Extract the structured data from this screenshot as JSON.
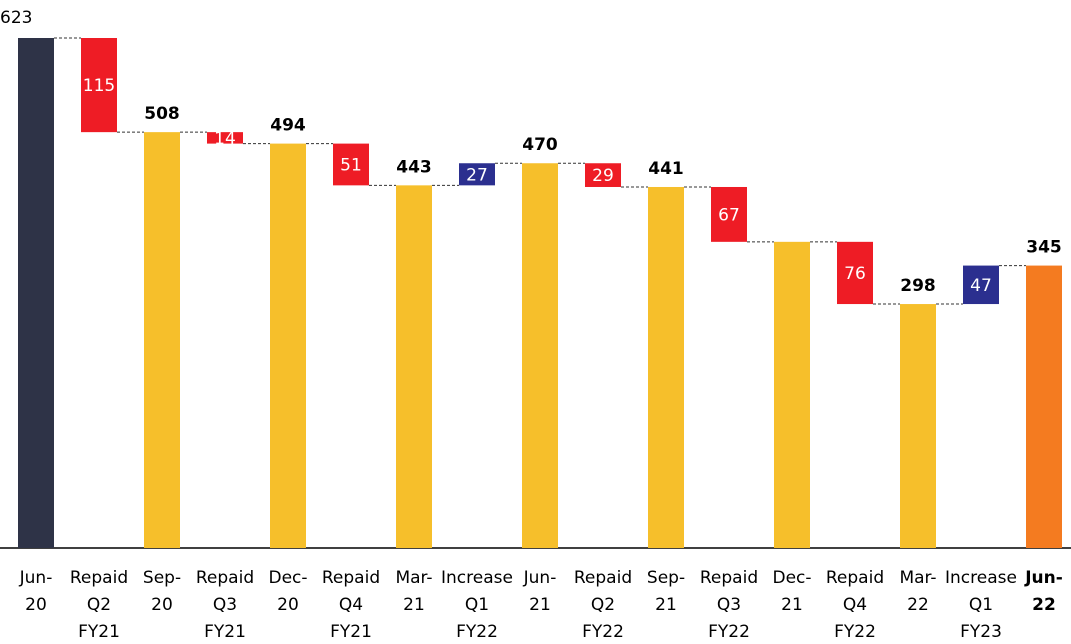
{
  "chart_data": {
    "type": "waterfall",
    "categories": [
      "Jun-20",
      "Repaid Q2 FY21",
      "Sep-20",
      "Repaid Q3 FY21",
      "Dec-20",
      "Repaid Q4 FY21",
      "Mar-21",
      "Increase Q1 FY22",
      "Jun-21",
      "Repaid Q2 FY22",
      "Sep-21",
      "Repaid Q3 FY22",
      "Dec-21",
      "Repaid Q4 FY22",
      "Mar-22",
      "Increase Q1 FY23",
      "Jun-22"
    ],
    "values": [
      623,
      115,
      508,
      14,
      494,
      51,
      443,
      27,
      470,
      29,
      441,
      67,
      374,
      76,
      298,
      47,
      345
    ],
    "value_labels": [
      "623",
      "115",
      "508",
      "14",
      "494",
      "51",
      "443",
      "27",
      "470",
      "29",
      "441",
      "67",
      null,
      "76",
      "298",
      "47",
      "345"
    ],
    "kinds": [
      "total",
      "decrease",
      "total",
      "decrease",
      "total",
      "decrease",
      "total",
      "increase",
      "total",
      "decrease",
      "total",
      "decrease",
      "total",
      "decrease",
      "total",
      "increase",
      "total"
    ],
    "colors": [
      "#2e3347",
      "#ee1c25",
      "#f6bf2b",
      "#ee1c25",
      "#f6bf2b",
      "#ee1c25",
      "#f6bf2b",
      "#2b2f8f",
      "#f6bf2b",
      "#ee1c25",
      "#f6bf2b",
      "#ee1c25",
      "#f6bf2b",
      "#ee1c25",
      "#f6bf2b",
      "#2b2f8f",
      "#f47b20"
    ],
    "ylim": [
      0,
      623
    ]
  }
}
